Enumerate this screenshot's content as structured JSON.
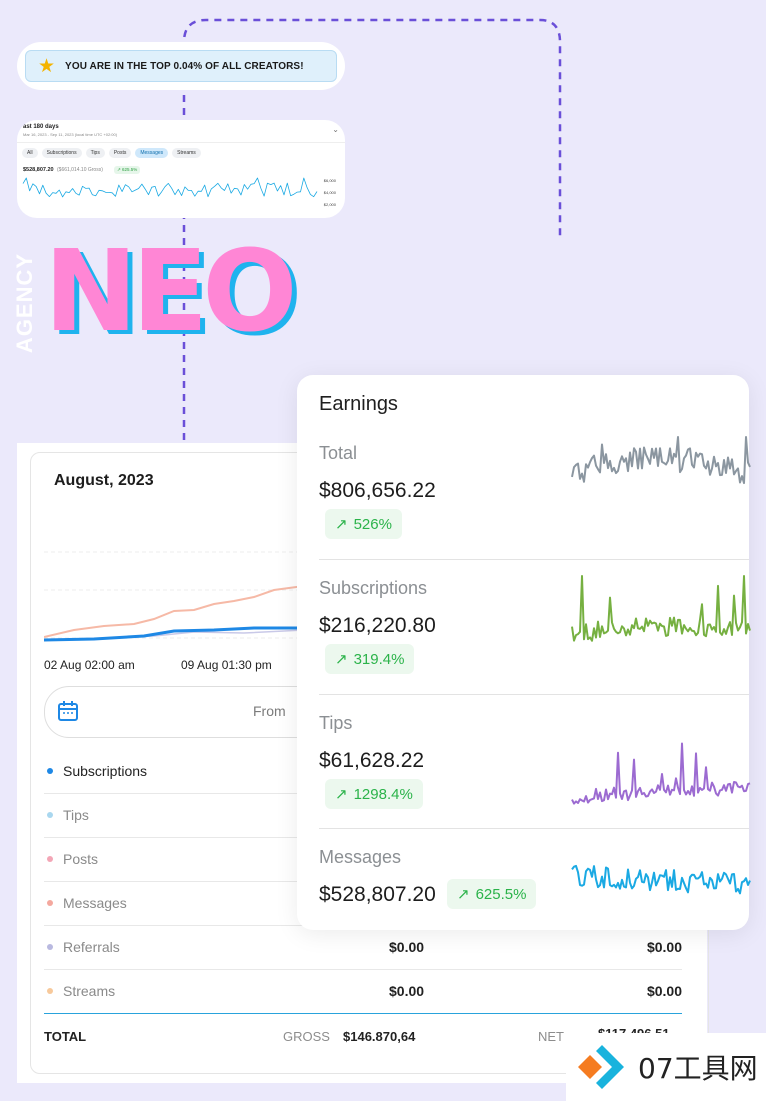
{
  "badge": {
    "icon": "star-icon",
    "text": "YOU ARE IN THE TOP 0.04% OF ALL CREATORS!"
  },
  "mini_stats": {
    "title": "ast 180 days",
    "subtitle": "Mar 16, 2023 - Sep 11, 2023 (local time UTC +02:00)",
    "tabs": [
      "All",
      "Subscriptions",
      "Tips",
      "Posts",
      "Messages",
      "Streams"
    ],
    "active_tab": "Messages",
    "amount": "$528,807.20",
    "gross": "($661,014.10 Gross)",
    "change": "↗ 625.5%",
    "y_ticks": [
      "$6,000",
      "$4,000",
      "$2,000"
    ]
  },
  "logo": {
    "side": "AGENCY",
    "main": "NEO"
  },
  "statements": {
    "month": "August, 2023",
    "x_labels": [
      "02 Aug 02:00 am",
      "09 Aug 01:30 pm"
    ],
    "range_from": "From",
    "rows": [
      {
        "label": "Subscriptions",
        "color": "#1e88e5",
        "active": true
      },
      {
        "label": "Tips",
        "color": "#a9d7ef",
        "active": false
      },
      {
        "label": "Posts",
        "color": "#f3a6b6",
        "active": false
      },
      {
        "label": "Messages",
        "color": "#f4a89e",
        "active": false
      },
      {
        "label": "Referrals",
        "color": "#b9b9e0",
        "active": false,
        "gross": "$0.00",
        "net": "$0.00"
      },
      {
        "label": "Streams",
        "color": "#f7c99b",
        "active": false,
        "gross": "$0.00",
        "net": "$0.00"
      }
    ],
    "total": {
      "label": "TOTAL",
      "gross_label": "GROSS",
      "gross": "$146.870,64",
      "net_label": "NET",
      "net": "$117.496,51"
    }
  },
  "earnings": {
    "title": "Earnings",
    "sections": [
      {
        "label": "Total",
        "value": "$806,656.22",
        "change": "526%",
        "color": "#8b96a0"
      },
      {
        "label": "Subscriptions",
        "value": "$216,220.80",
        "change": "319.4%",
        "color": "#76b041"
      },
      {
        "label": "Tips",
        "value": "$61,628.22",
        "change": "1298.4%",
        "color": "#9c6bd1"
      },
      {
        "label": "Messages",
        "value": "$528,807.20",
        "change": "625.5%",
        "color": "#1aa9e3"
      }
    ]
  },
  "watermark": {
    "text": "07工具网"
  }
}
